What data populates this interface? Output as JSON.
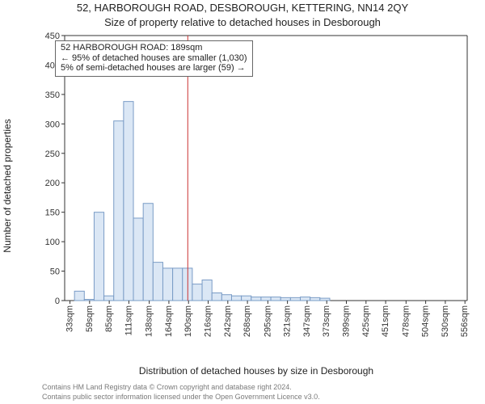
{
  "title_main": "52, HARBOROUGH ROAD, DESBOROUGH, KETTERING, NN14 2QY",
  "title_sub": "Size of property relative to detached houses in Desborough",
  "xlabel": "Distribution of detached houses by size in Desborough",
  "ylabel": "Number of detached properties",
  "credit1": "Contains HM Land Registry data © Crown copyright and database right 2024.",
  "credit2": "Contains public sector information licensed under the Open Government Licence v3.0.",
  "annotation": {
    "line1": "52 HARBOROUGH ROAD: 189sqm",
    "line2": "← 95% of detached houses are smaller (1,030)",
    "line3": "5% of semi-detached houses are larger (59) →"
  },
  "chart": {
    "type": "histogram",
    "background_color": "#ffffff",
    "bar_fill": "#dbe7f5",
    "bar_stroke": "#7a9cc6",
    "bar_stroke_width": 1,
    "marker_line_color": "#cc3333",
    "marker_line_width": 1,
    "marker_x_value": 189,
    "axis_color": "#333333",
    "tick_fontsize": 11,
    "x_start": 26,
    "x_bin_width": 13,
    "bin_left_edges": [
      26,
      39,
      52,
      65,
      78,
      91,
      104,
      117,
      130,
      143,
      156,
      169,
      182,
      195,
      208,
      221,
      234,
      247,
      260,
      273,
      286,
      299,
      312,
      325,
      338,
      351,
      364,
      377,
      390,
      403,
      416,
      429,
      442,
      455,
      468,
      481,
      494,
      507,
      520,
      533,
      546
    ],
    "counts": [
      0,
      16,
      2,
      150,
      8,
      305,
      338,
      140,
      165,
      65,
      55,
      55,
      55,
      28,
      35,
      13,
      10,
      8,
      8,
      6,
      6,
      6,
      5,
      5,
      6,
      5,
      4,
      0,
      0,
      0,
      0,
      0,
      0,
      0,
      0,
      0,
      0,
      0,
      0,
      0,
      0
    ],
    "x_tick_labels": [
      "33sqm",
      "59sqm",
      "85sqm",
      "111sqm",
      "138sqm",
      "164sqm",
      "190sqm",
      "216sqm",
      "242sqm",
      "268sqm",
      "295sqm",
      "321sqm",
      "347sqm",
      "373sqm",
      "399sqm",
      "425sqm",
      "451sqm",
      "478sqm",
      "504sqm",
      "530sqm",
      "556sqm"
    ],
    "x_tick_values": [
      33,
      59,
      85,
      111,
      138,
      164,
      190,
      216,
      242,
      268,
      295,
      321,
      347,
      373,
      399,
      425,
      451,
      478,
      504,
      530,
      556
    ],
    "xlim": [
      26,
      559
    ],
    "ylim": [
      0,
      450
    ],
    "y_tick_step": 50,
    "y_ticks": [
      0,
      50,
      100,
      150,
      200,
      250,
      300,
      350,
      400,
      450
    ]
  }
}
